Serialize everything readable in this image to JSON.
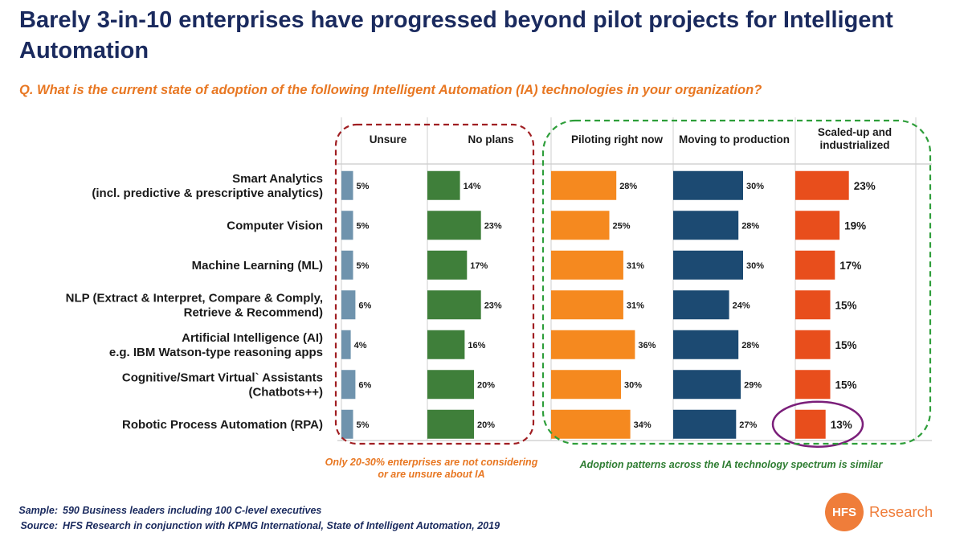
{
  "title": "Barely 3-in-10 enterprises have progressed beyond pilot projects for Intelligent Automation",
  "question": "Q. What is the current state of adoption of the following Intelligent Automation (IA) technologies in your organization?",
  "chart_data": {
    "type": "bar",
    "orientation": "horizontal",
    "categories": [
      [
        "Smart Analytics",
        "(incl. predictive & prescriptive analytics)"
      ],
      [
        "Computer Vision"
      ],
      [
        "Machine Learning (ML)"
      ],
      [
        "NLP (Extract & Interpret, Compare & Comply,",
        "Retrieve &  Recommend)"
      ],
      [
        "Artificial Intelligence (AI)",
        "e.g. IBM Watson-type reasoning apps"
      ],
      [
        "Cognitive/Smart Virtual` Assistants",
        "(Chatbots++)"
      ],
      [
        "Robotic Process Automation (RPA)"
      ]
    ],
    "series": [
      {
        "name": "Unsure",
        "color": "#6f93ad",
        "values": [
          5,
          5,
          5,
          6,
          4,
          6,
          5
        ],
        "labels": [
          "5%",
          "5%",
          "5%",
          "6%",
          "4%",
          "6%",
          "5%"
        ]
      },
      {
        "name": "No plans",
        "color": "#3f7f3a",
        "values": [
          14,
          23,
          17,
          23,
          16,
          20,
          20
        ],
        "labels": [
          "14%",
          "23%",
          "17%",
          "23%",
          "16%",
          "20%",
          "20%"
        ]
      },
      {
        "name": "Piloting right now",
        "color": "#f5891f",
        "values": [
          28,
          25,
          31,
          31,
          36,
          30,
          34
        ],
        "labels": [
          "28%",
          "25%",
          "31%",
          "31%",
          "36%",
          "30%",
          "34%"
        ]
      },
      {
        "name": "Moving to production",
        "color": "#1c4a72",
        "values": [
          30,
          28,
          30,
          24,
          28,
          29,
          27
        ],
        "labels": [
          "30%",
          "28%",
          "30%",
          "24%",
          "28%",
          "29%",
          "27%"
        ]
      },
      {
        "name": [
          "Scaled-up and",
          "industrialized"
        ],
        "color": "#e84e1c",
        "values": [
          23,
          19,
          17,
          15,
          15,
          15,
          13
        ],
        "labels": [
          "23%",
          "19%",
          "17%",
          "15%",
          "15%",
          "15%",
          "13%"
        ]
      }
    ],
    "highlight": {
      "series_index": 4,
      "category_index": 6,
      "color": "#7b1f7a"
    },
    "groups": [
      {
        "series": [
          0,
          1
        ],
        "style": "dashed",
        "color": "#a01e22"
      },
      {
        "series": [
          2,
          3,
          4
        ],
        "style": "dashed",
        "color": "#2e9e3a"
      }
    ]
  },
  "notes": {
    "red_line1": "Only 20-30% enterprises are not considering",
    "red_line2": "or are unsure about IA",
    "green": "Adoption patterns across the IA technology spectrum is similar"
  },
  "footer": {
    "sample_key": "Sample:",
    "sample_value": "590 Business leaders including 100 C-level executives",
    "source_key": "Source:",
    "source_value": "HFS Research in conjunction with KPMG International, State of Intelligent Automation, 2019"
  },
  "logo": {
    "mark": "HFS",
    "word": "Research"
  }
}
